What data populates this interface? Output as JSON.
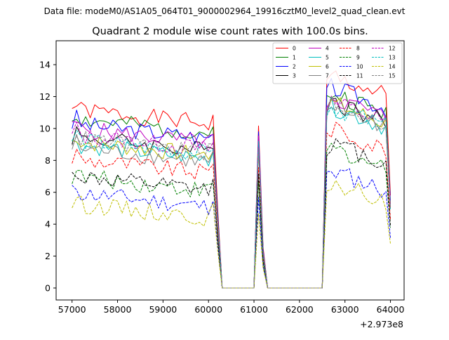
{
  "suptitle": "Data file: modeM0/AS1A05_064T01_9000002964_19916cztM0_level2_quad_clean.evt",
  "chart_data": {
    "type": "line",
    "title": "Quadrant 2 module wise count rates with 100.0s bins.",
    "xlabel": "",
    "ylabel": "",
    "x_offset_label": "+2.973e8",
    "xlim": [
      56650,
      64300
    ],
    "ylim": [
      -0.75,
      15.5
    ],
    "x_ticks": [
      57000,
      58000,
      59000,
      60000,
      61000,
      62000,
      63000,
      64000
    ],
    "x_tick_labels": [
      "57000",
      "58000",
      "59000",
      "60000",
      "61000",
      "62000",
      "63000",
      "64000"
    ],
    "y_ticks": [
      0,
      2,
      4,
      6,
      8,
      10,
      12,
      14
    ],
    "y_tick_labels": [
      "0",
      "2",
      "4",
      "6",
      "8",
      "10",
      "12",
      "14"
    ],
    "grid": false,
    "legend_placement": "top-right",
    "legend_columns": 4,
    "x": [
      57000,
      57100,
      57200,
      57300,
      57400,
      57500,
      57600,
      57700,
      57800,
      57900,
      58000,
      58100,
      58200,
      58300,
      58400,
      58500,
      58600,
      58700,
      58800,
      58900,
      59000,
      59100,
      59200,
      59300,
      59400,
      59500,
      59600,
      59700,
      59800,
      59900,
      60000,
      60100,
      60200,
      60300,
      60400,
      60500,
      60600,
      60700,
      60800,
      60900,
      61000,
      61100,
      61200,
      61300,
      61400,
      61500,
      61600,
      61700,
      61800,
      61900,
      62000,
      62100,
      62200,
      62300,
      62400,
      62500,
      62600,
      62700,
      62800,
      62900,
      63000,
      63100,
      63200,
      63300,
      63400,
      63500,
      63600,
      63700,
      63800,
      63900,
      64000
    ],
    "series": [
      {
        "name": "0",
        "color": "#ff0000",
        "dash": "solid",
        "level": 11.2,
        "post": 12.9,
        "seed": 1
      },
      {
        "name": "1",
        "color": "#008000",
        "dash": "solid",
        "level": 10.6,
        "post": 11.8,
        "seed": 2
      },
      {
        "name": "2",
        "color": "#0000ff",
        "dash": "solid",
        "level": 10.3,
        "post": 12.2,
        "seed": 3
      },
      {
        "name": "3",
        "color": "#000000",
        "dash": "solid",
        "level": 9.5,
        "post": 11.3,
        "seed": 4
      },
      {
        "name": "4",
        "color": "#bf00bf",
        "dash": "solid",
        "level": 10.0,
        "post": 11.6,
        "seed": 5
      },
      {
        "name": "5",
        "color": "#00bfbf",
        "dash": "solid",
        "level": 9.0,
        "post": 11.0,
        "seed": 6
      },
      {
        "name": "6",
        "color": "#bfbf00",
        "dash": "solid",
        "level": 9.2,
        "post": 11.2,
        "seed": 7
      },
      {
        "name": "7",
        "color": "#808080",
        "dash": "solid",
        "level": 8.8,
        "post": 11.1,
        "seed": 8
      },
      {
        "name": "8",
        "color": "#ff0000",
        "dash": "dashed",
        "level": 8.1,
        "post": 9.6,
        "seed": 9
      },
      {
        "name": "9",
        "color": "#008000",
        "dash": "dashed",
        "level": 7.0,
        "post": 8.4,
        "seed": 10
      },
      {
        "name": "10",
        "color": "#0000ff",
        "dash": "dashed",
        "level": 6.0,
        "post": 7.0,
        "seed": 11
      },
      {
        "name": "11",
        "color": "#000000",
        "dash": "dashed",
        "level": 7.0,
        "post": 8.7,
        "seed": 12
      },
      {
        "name": "12",
        "color": "#bf00bf",
        "dash": "dashed",
        "level": 9.6,
        "post": 11.3,
        "seed": 13
      },
      {
        "name": "13",
        "color": "#00bfbf",
        "dash": "dashed",
        "level": 9.3,
        "post": 11.0,
        "seed": 14
      },
      {
        "name": "14",
        "color": "#bfbf00",
        "dash": "dashed",
        "level": 5.3,
        "post": 6.2,
        "seed": 15
      },
      {
        "name": "15",
        "color": "#808080",
        "dash": "dashed",
        "level": 9.4,
        "post": 11.2,
        "seed": 16
      }
    ]
  }
}
